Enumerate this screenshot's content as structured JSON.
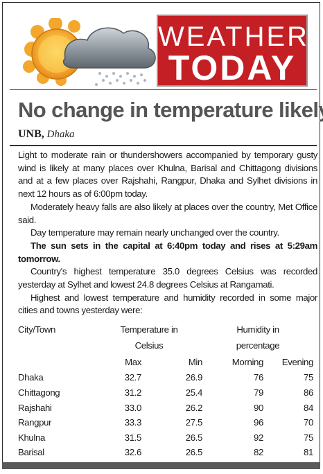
{
  "header": {
    "badge_line1": "WEATHER",
    "badge_line2": "TODAY",
    "emblem_icon": "sun-cloud-rain-icon",
    "colors": {
      "badge_red": "#c41f24",
      "sun": "#f5a623",
      "cloud": "#8c9399"
    }
  },
  "article": {
    "headline": "No change in temperature likely",
    "source": "UNB,",
    "location": "Dhaka",
    "paragraphs": [
      "Light to moderate rain or thundershowers accompanied by temporary gusty wind is likely at many places over Khulna, Barisal and Chittagong divisions and at a few places over Rajshahi, Rangpur, Dhaka and Sylhet divisions in next 12 hours as of 6:00pm today.",
      "Moderately heavy falls are also likely at places over the country, Met Office said.",
      "Day temperature may remain nearly unchanged over the country.",
      "The sun sets in the capital at 6:40pm today and rises at 5:29am tomorrow.",
      "Country's highest temperature 35.0 degrees Celsius was recorded yesterday at Sylhet and lowest 24.8 degrees Celsius at Rangamati.",
      "Highest and lowest temperature and humidity recorded in some major cities and towns yesterday were:"
    ]
  },
  "table": {
    "city_header": "City/Town",
    "temp_header_line1": "Temperature in",
    "temp_header_line2": "Celsius",
    "hum_header_line1": "Humidity in",
    "hum_header_line2": "percentage",
    "sub_headers": [
      "Max",
      "Min",
      "Morning",
      "Evening"
    ],
    "rows": [
      {
        "city": "Dhaka",
        "max": "32.7",
        "min": "26.9",
        "morning": "76",
        "evening": "75"
      },
      {
        "city": "Chittagong",
        "max": "31.2",
        "min": "25.4",
        "morning": "79",
        "evening": "86"
      },
      {
        "city": "Rajshahi",
        "max": "33.0",
        "min": "26.2",
        "morning": "90",
        "evening": "84"
      },
      {
        "city": "Rangpur",
        "max": "33.3",
        "min": "27.5",
        "morning": "96",
        "evening": "70"
      },
      {
        "city": "Khulna",
        "max": "31.5",
        "min": "26.5",
        "morning": "92",
        "evening": "75"
      },
      {
        "city": "Barisal",
        "max": "32.6",
        "min": "26.5",
        "morning": "82",
        "evening": "81"
      }
    ]
  }
}
